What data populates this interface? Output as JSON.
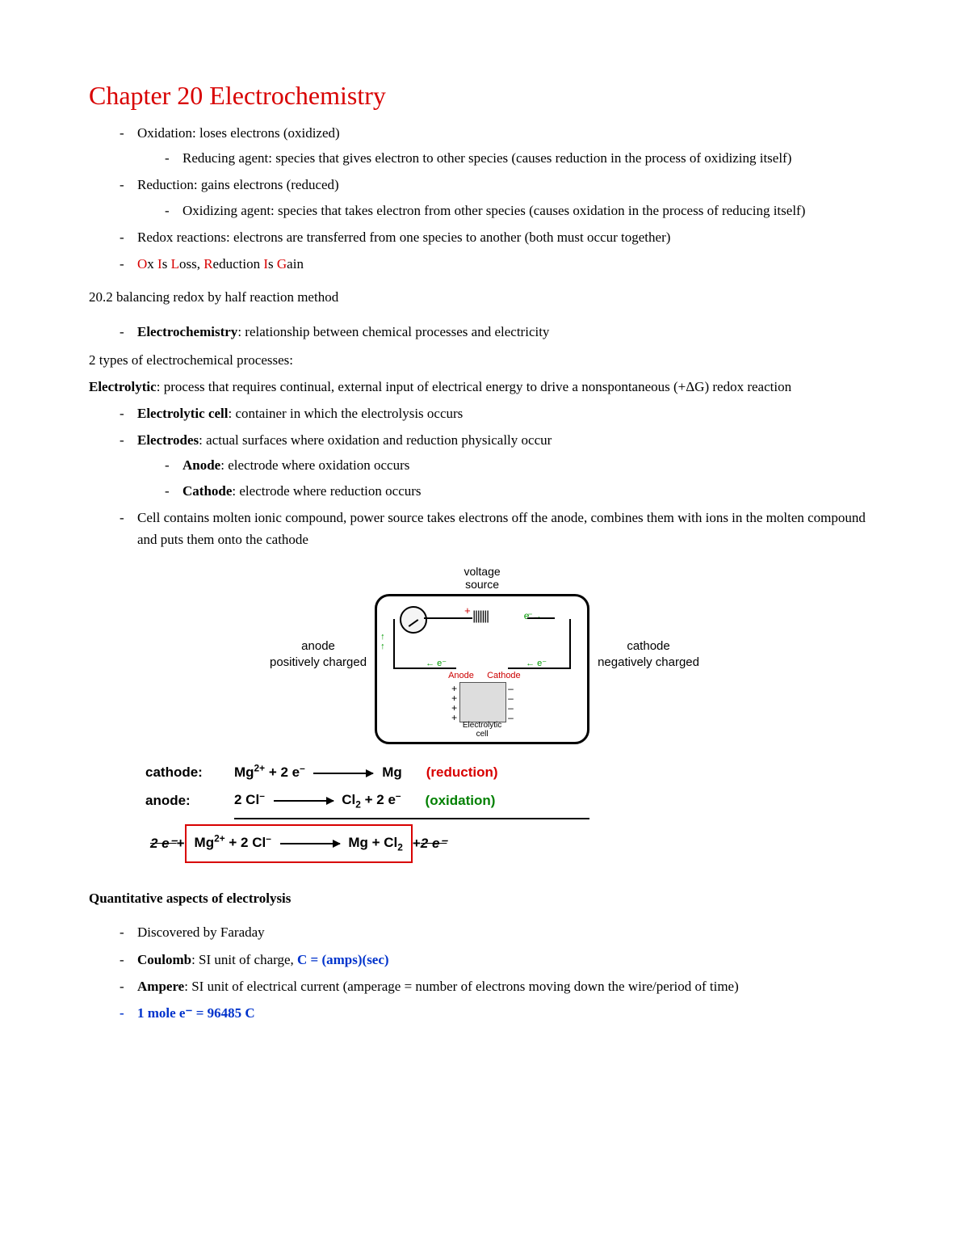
{
  "title": "Chapter 20 Electrochemistry",
  "colors": {
    "red": "#d80000",
    "blue": "#0033cc",
    "green": "#008000",
    "text": "#000000",
    "background": "#ffffff"
  },
  "intro_bullets": [
    {
      "text": "Oxidation: loses electrons (oxidized)",
      "sub": [
        "Reducing agent: species that gives electron to other species (causes reduction in the process of oxidizing itself)"
      ]
    },
    {
      "text": "Reduction: gains electrons (reduced)",
      "sub": [
        "Oxidizing agent: species that takes electron from other species (causes oxidation in the process of reducing itself)"
      ]
    },
    {
      "text": "Redox reactions: electrons are transferred from one species to another (both must occur together)"
    }
  ],
  "oilrig": {
    "segments": [
      {
        "t": "O",
        "c": "red"
      },
      {
        "t": "x "
      },
      {
        "t": "I",
        "c": "red"
      },
      {
        "t": "s "
      },
      {
        "t": "L",
        "c": "red"
      },
      {
        "t": "oss, "
      },
      {
        "t": "R",
        "c": "red"
      },
      {
        "t": "eduction "
      },
      {
        "t": "I",
        "c": "red"
      },
      {
        "t": "s "
      },
      {
        "t": "G",
        "c": "red"
      },
      {
        "t": "ain"
      }
    ]
  },
  "section_20_2": "20.2 balancing redox by half reaction method",
  "electrochem_def": {
    "bold": "Electrochemistry",
    "rest": ": relationship between chemical processes and electricity"
  },
  "two_types_intro": "2 types of electrochemical processes:",
  "electrolytic_def": {
    "bold": "Electrolytic",
    "rest": ": process that requires continual, external input of electrical energy to drive a nonspontaneous (+ΔG) redox reaction"
  },
  "electrolytic_bullets": [
    {
      "bold": "Electrolytic cell",
      "rest": ": container in which the electrolysis occurs"
    },
    {
      "bold": "Electrodes",
      "rest": ": actual surfaces where oxidation and reduction physically occur",
      "sub": [
        {
          "bold": "Anode",
          "rest": ": electrode where oxidation occurs"
        },
        {
          "bold": "Cathode",
          "rest": ": electrode where reduction occurs"
        }
      ]
    },
    {
      "rest": "Cell contains molten ionic compound, power source takes electrons off the anode, combines them with ions in the molten compound and puts them onto the cathode"
    }
  ],
  "diagram": {
    "voltage_source": "voltage\nsource",
    "anode_side": {
      "l1": "anode",
      "l2": "positively charged"
    },
    "cathode_side": {
      "l1": "cathode",
      "l2": "negatively charged"
    },
    "anode_label": "Anode",
    "cathode_label": "Cathode",
    "electrolytic_cell": "Electrolytic\ncell",
    "battery_cells": "| | | | | | |",
    "plus": "+",
    "minus": "–",
    "e_arrow_left": "← e⁻",
    "e_arrow_right": "e⁻ →",
    "up_arrow": "↑"
  },
  "equations": {
    "cathode": {
      "label": "cathode:",
      "lhs": "Mg",
      "lhs_sup": "2+",
      "plus": " + 2 e",
      "e_sup": "–",
      "rhs": "Mg",
      "note": "(reduction)",
      "note_color": "red"
    },
    "anode": {
      "label": "anode:",
      "lhs": "2 Cl",
      "lhs_sup": "–",
      "rhs1": "Cl",
      "rhs1_sub": "2",
      "plus2": " + 2 e",
      "e_sup": "–",
      "note": "(oxidation)",
      "note_color": "green"
    },
    "net": {
      "left_strike": "2 e⁻",
      "plus1": " + ",
      "box_lhs": "Mg",
      "box_lhs_sup": "2+",
      "box_plus": " + 2 Cl",
      "box_cl_sup": "–",
      "box_rhs1": "Mg + Cl",
      "box_rhs_sub": "2",
      "plus2": " + ",
      "right_strike": "2 e⁻"
    }
  },
  "quant_heading": "Quantitative aspects of electrolysis",
  "quant_bullets": {
    "b1": "Discovered by Faraday",
    "b2_bold": "Coulomb",
    "b2_rest": ": SI unit of charge, ",
    "b2_blue": "C = (amps)(sec)",
    "b3_bold": "Ampere",
    "b3_rest": ": SI unit of electrical current (amperage = number of electrons moving down the wire/period of time)",
    "b4_blue": "1 mole e⁻ = 96485 C"
  }
}
